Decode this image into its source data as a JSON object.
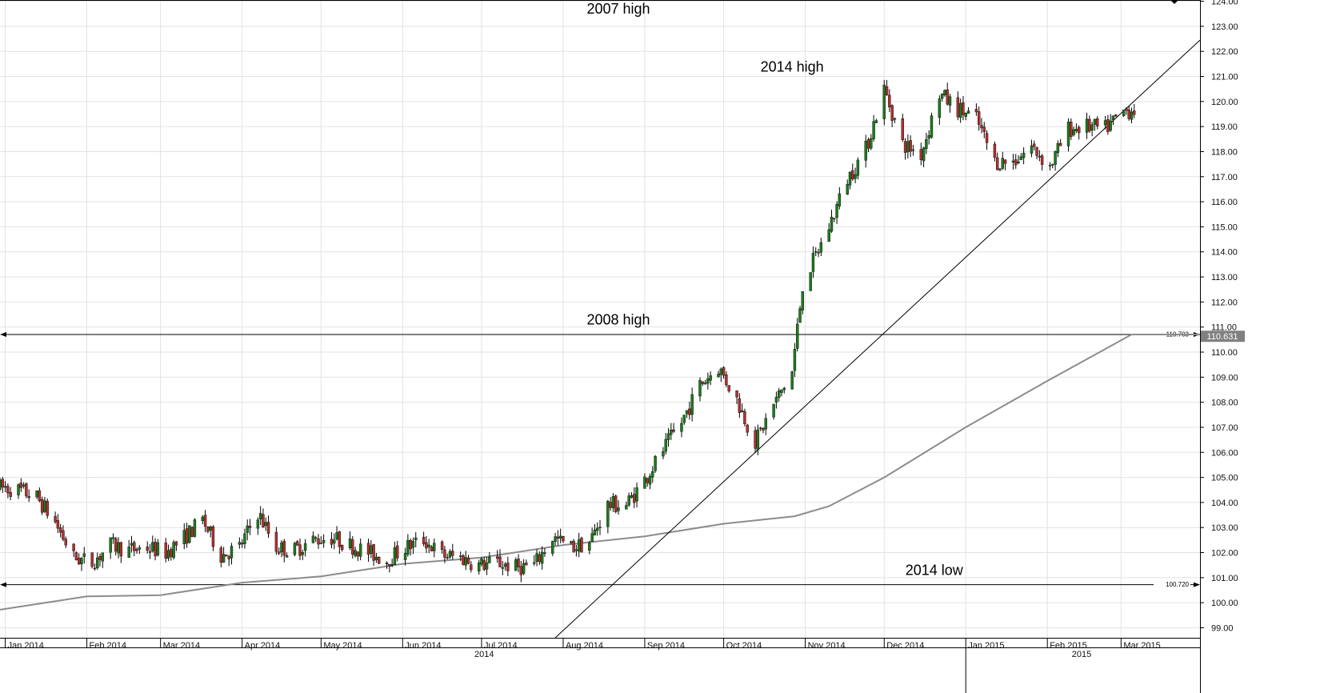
{
  "chart_data": {
    "type": "candlestick",
    "title": "",
    "xlabel": "",
    "ylabel": "",
    "ylim": [
      98.6,
      124.05
    ],
    "y_ticks": [
      "99.00",
      "100.00",
      "101.00",
      "102.00",
      "103.00",
      "104.00",
      "105.00",
      "106.00",
      "107.00",
      "108.00",
      "109.00",
      "110.00",
      "111.00",
      "112.00",
      "113.00",
      "114.00",
      "115.00",
      "116.00",
      "117.00",
      "118.00",
      "119.00",
      "120.00",
      "121.00",
      "122.00",
      "123.00",
      "124.00"
    ],
    "x_months": [
      {
        "label": "Jan 2014",
        "date": "2014-01-01"
      },
      {
        "label": "Feb 2014",
        "date": "2014-02-01"
      },
      {
        "label": "Mar 2014",
        "date": "2014-03-01"
      },
      {
        "label": "Apr 2014",
        "date": "2014-04-01"
      },
      {
        "label": "May 2014",
        "date": "2014-05-01"
      },
      {
        "label": "Jun 2014",
        "date": "2014-06-01"
      },
      {
        "label": "Jul 2014",
        "date": "2014-07-01"
      },
      {
        "label": "Aug 2014",
        "date": "2014-08-01"
      },
      {
        "label": "Sep 2014",
        "date": "2014-09-01"
      },
      {
        "label": "Oct 2014",
        "date": "2014-10-01"
      },
      {
        "label": "Nov 2014",
        "date": "2014-11-01"
      },
      {
        "label": "Dec 2014",
        "date": "2014-12-01"
      },
      {
        "label": "Jan 2015",
        "date": "2015-01-01"
      },
      {
        "label": "Feb 2015",
        "date": "2015-02-01"
      },
      {
        "label": "Mar 2015",
        "date": "2015-03-01"
      }
    ],
    "x_years": [
      {
        "label": "2014",
        "date": "2014-07-02"
      },
      {
        "label": "2015",
        "date": "2015-02-14"
      }
    ],
    "year_separator_date": "2015-01-01",
    "x_range": [
      "2013-12-30",
      "2015-03-31"
    ],
    "colors": {
      "up": "#1e7a1e",
      "down": "#b03030",
      "wick": "#000000",
      "grid": "#e2e2e2",
      "ma": "#8c8c8c",
      "price_box": "#808080"
    },
    "horizontal_levels": [
      {
        "value": 110.703,
        "label": "110.703"
      },
      {
        "value": 100.72,
        "label": "100.720"
      }
    ],
    "current_price": "110.631",
    "trendline": {
      "from": {
        "date": "2014-07-29",
        "value": 98.6
      },
      "to": {
        "date": "2015-03-31",
        "value": 122.45
      }
    },
    "moving_average": {
      "dates": [
        "2013-12-30",
        "2014-02-01",
        "2014-03-01",
        "2014-04-01",
        "2014-05-01",
        "2014-06-01",
        "2014-07-01",
        "2014-08-01",
        "2014-09-01",
        "2014-10-01",
        "2014-10-28",
        "2014-11-10",
        "2014-12-01",
        "2015-01-01",
        "2015-02-01",
        "2015-03-05",
        "2015-03-31"
      ],
      "values": [
        99.72,
        100.25,
        100.3,
        100.8,
        101.05,
        101.55,
        101.8,
        102.3,
        102.65,
        103.15,
        103.45,
        103.85,
        105.0,
        107.0,
        108.85,
        110.703,
        110.703
      ]
    },
    "annotations": [
      {
        "text": "2007 high",
        "date": "2014-08-22",
        "value": 123.5
      },
      {
        "text": "2014 high",
        "date": "2014-10-27",
        "value": 121.2
      },
      {
        "text": "2008 high",
        "date": "2014-08-22",
        "value": 111.1
      },
      {
        "text": "2014 low",
        "date": "2014-12-20",
        "value": 101.1
      }
    ],
    "anchors": [
      [
        "2013-12-30",
        104.6
      ],
      [
        "2014-01-06",
        104.5
      ],
      [
        "2014-01-13",
        104.2
      ],
      [
        "2014-01-20",
        103.2
      ],
      [
        "2014-01-27",
        101.8
      ],
      [
        "2014-02-03",
        101.6
      ],
      [
        "2014-02-10",
        102.3
      ],
      [
        "2014-02-17",
        102.1
      ],
      [
        "2014-02-24",
        102.2
      ],
      [
        "2014-03-03",
        102.0
      ],
      [
        "2014-03-10",
        102.6
      ],
      [
        "2014-03-17",
        103.3
      ],
      [
        "2014-03-24",
        101.9
      ],
      [
        "2014-03-31",
        102.2
      ],
      [
        "2014-04-07",
        103.6
      ],
      [
        "2014-04-14",
        102.2
      ],
      [
        "2014-04-21",
        102.1
      ],
      [
        "2014-04-28",
        102.5
      ],
      [
        "2014-05-05",
        102.6
      ],
      [
        "2014-05-12",
        102.3
      ],
      [
        "2014-05-19",
        102.0
      ],
      [
        "2014-05-26",
        101.7
      ],
      [
        "2014-06-02",
        102.2
      ],
      [
        "2014-06-09",
        102.5
      ],
      [
        "2014-06-16",
        101.9
      ],
      [
        "2014-06-23",
        101.8
      ],
      [
        "2014-06-30",
        101.5
      ],
      [
        "2014-07-07",
        101.6
      ],
      [
        "2014-07-14",
        101.4
      ],
      [
        "2014-07-21",
        101.5
      ],
      [
        "2014-07-28",
        102.6
      ],
      [
        "2014-08-04",
        102.2
      ],
      [
        "2014-08-11",
        102.4
      ],
      [
        "2014-08-18",
        103.9
      ],
      [
        "2014-08-25",
        103.9
      ],
      [
        "2014-09-01",
        104.9
      ],
      [
        "2014-09-08",
        106.1
      ],
      [
        "2014-09-15",
        107.2
      ],
      [
        "2014-09-22",
        108.7
      ],
      [
        "2014-09-29",
        109.4
      ],
      [
        "2014-10-06",
        108.1
      ],
      [
        "2014-10-13",
        106.4
      ],
      [
        "2014-10-20",
        107.9
      ],
      [
        "2014-10-27",
        109.2
      ],
      [
        "2014-10-31",
        112.7
      ],
      [
        "2014-11-10",
        115.0
      ],
      [
        "2014-11-17",
        116.9
      ],
      [
        "2014-11-24",
        118.1
      ],
      [
        "2014-12-01",
        120.5
      ],
      [
        "2014-12-08",
        118.3
      ],
      [
        "2014-12-15",
        117.9
      ],
      [
        "2014-12-22",
        120.3
      ],
      [
        "2014-12-29",
        119.7
      ],
      [
        "2015-01-05",
        119.3
      ],
      [
        "2015-01-12",
        117.6
      ],
      [
        "2015-01-19",
        117.6
      ],
      [
        "2015-01-26",
        118.2
      ],
      [
        "2015-02-02",
        117.4
      ],
      [
        "2015-02-09",
        118.9
      ],
      [
        "2015-02-16",
        119.0
      ],
      [
        "2015-02-23",
        118.9
      ],
      [
        "2015-03-02",
        119.6
      ],
      [
        "2015-03-06",
        119.7
      ]
    ],
    "grid": true,
    "legend": "none"
  }
}
